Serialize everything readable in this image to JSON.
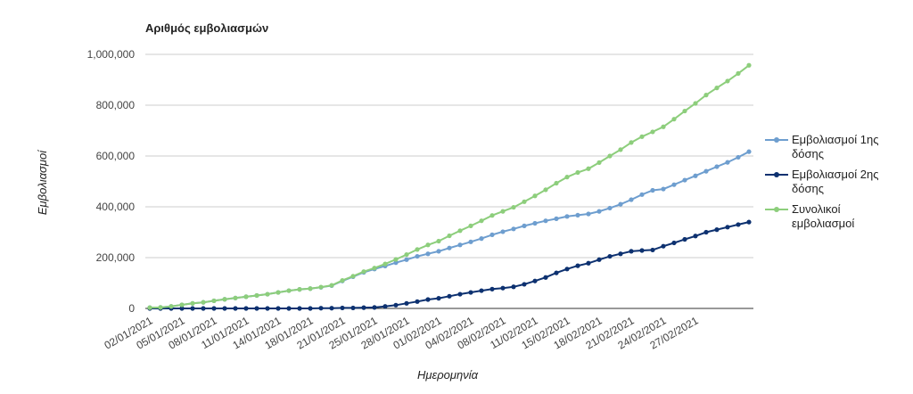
{
  "chart_data": {
    "type": "line",
    "title": "Αριθμός εμβολιασμών",
    "xlabel": "Ημερομηνία",
    "ylabel": "Εμβολιασμοί",
    "ylim": [
      0,
      1000000
    ],
    "yticks": [
      "0",
      "200,000",
      "400,000",
      "600,000",
      "800,000",
      "1,000,000"
    ],
    "ytick_values": [
      0,
      200000,
      400000,
      600000,
      800000,
      1000000
    ],
    "xticks": [
      "02/01/2021",
      "05/01/2021",
      "08/01/2021",
      "11/01/2021",
      "14/01/2021",
      "18/01/2021",
      "21/01/2021",
      "25/01/2021",
      "28/01/2021",
      "01/02/2021",
      "04/02/2021",
      "08/02/2021",
      "11/02/2021",
      "15/02/2021",
      "18/02/2021",
      "21/02/2021",
      "24/02/2021",
      "27/02/2021"
    ],
    "xtick_index": [
      0,
      3,
      6,
      9,
      12,
      15,
      18,
      21,
      24,
      27,
      30,
      33,
      36,
      39,
      42,
      45,
      48,
      51
    ],
    "grid": true,
    "legend_position": "right",
    "series": [
      {
        "name": "Εμβολιασμοί 1ης δόσης",
        "color": "#6e9ecf",
        "values": [
          3000,
          4000,
          8000,
          14000,
          20000,
          24000,
          30000,
          36000,
          41000,
          46000,
          51000,
          56000,
          63000,
          70000,
          75000,
          78000,
          83000,
          90000,
          108000,
          125000,
          142000,
          155000,
          167000,
          180000,
          192000,
          205000,
          215000,
          225000,
          238000,
          250000,
          262000,
          275000,
          290000,
          302000,
          313000,
          325000,
          335000,
          345000,
          353000,
          362000,
          367000,
          372000,
          382000,
          395000,
          410000,
          428000,
          448000,
          465000,
          470000,
          487000,
          505000,
          522000,
          540000,
          558000,
          575000,
          595000,
          617000
        ]
      },
      {
        "name": "Εμβολιασμοί 2ης δόσης",
        "color": "#0d3170",
        "values": [
          0,
          0,
          0,
          0,
          0,
          0,
          0,
          0,
          0,
          0,
          0,
          0,
          0,
          0,
          0,
          0,
          1000,
          1000,
          2000,
          2000,
          3000,
          4000,
          8000,
          13000,
          20000,
          27000,
          35000,
          40000,
          48000,
          56000,
          63000,
          70000,
          76000,
          80000,
          85000,
          95000,
          108000,
          122000,
          140000,
          155000,
          168000,
          178000,
          192000,
          205000,
          215000,
          225000,
          228000,
          230000,
          245000,
          258000,
          272000,
          285000,
          300000,
          310000,
          320000,
          330000,
          340000
        ]
      },
      {
        "name": "Συνολικοί εμβολιασμοί",
        "color": "#8dce7c",
        "values": [
          3000,
          4000,
          8000,
          14000,
          20000,
          24000,
          30000,
          36000,
          41000,
          46000,
          51000,
          56000,
          63000,
          70000,
          75000,
          78000,
          84000,
          91000,
          110000,
          127000,
          145000,
          159000,
          175000,
          193000,
          212000,
          232000,
          250000,
          265000,
          286000,
          306000,
          325000,
          345000,
          366000,
          382000,
          398000,
          420000,
          443000,
          467000,
          493000,
          517000,
          535000,
          550000,
          574000,
          600000,
          625000,
          653000,
          676000,
          695000,
          715000,
          745000,
          777000,
          807000,
          840000,
          868000,
          895000,
          925000,
          957000
        ]
      }
    ]
  }
}
